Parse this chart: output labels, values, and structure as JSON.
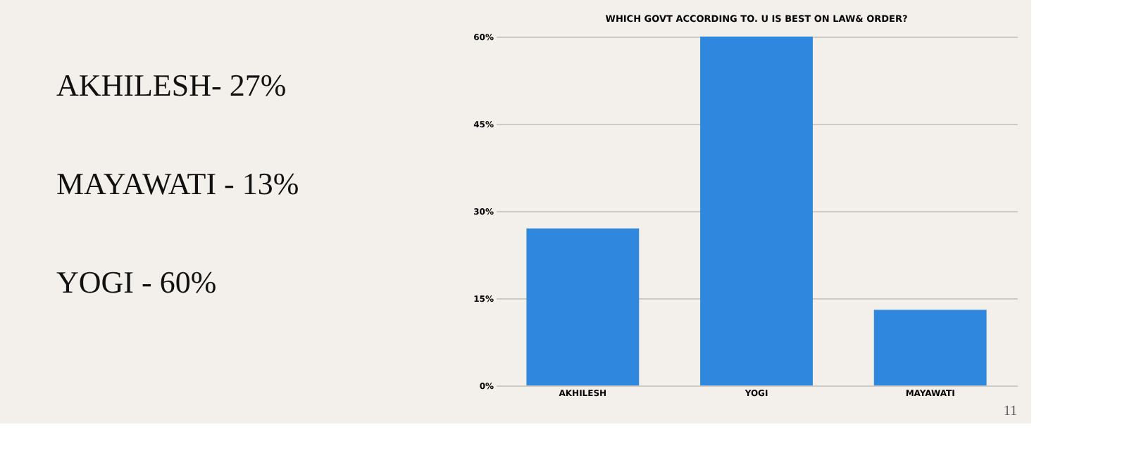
{
  "chart_data": {
    "type": "bar",
    "title": "WHICH GOVT ACCORDING TO. U IS BEST ON LAW& ORDER?",
    "categories": [
      "AKHILESH",
      "YOGI",
      "MAYAWATI"
    ],
    "values": [
      27,
      60,
      13
    ],
    "color": "#2f87de",
    "ylim": [
      0,
      60
    ],
    "yticks": [
      {
        "value": 0,
        "label": "0%"
      },
      {
        "value": 15,
        "label": "15%"
      },
      {
        "value": 30,
        "label": "30%"
      },
      {
        "value": 45,
        "label": "45%"
      },
      {
        "value": 60,
        "label": "60%"
      }
    ],
    "grid": "y",
    "annotations": [
      "AKHILESH- 27%",
      "MAYAWATI - 13%",
      "YOGI - 60%",
      "11"
    ]
  }
}
